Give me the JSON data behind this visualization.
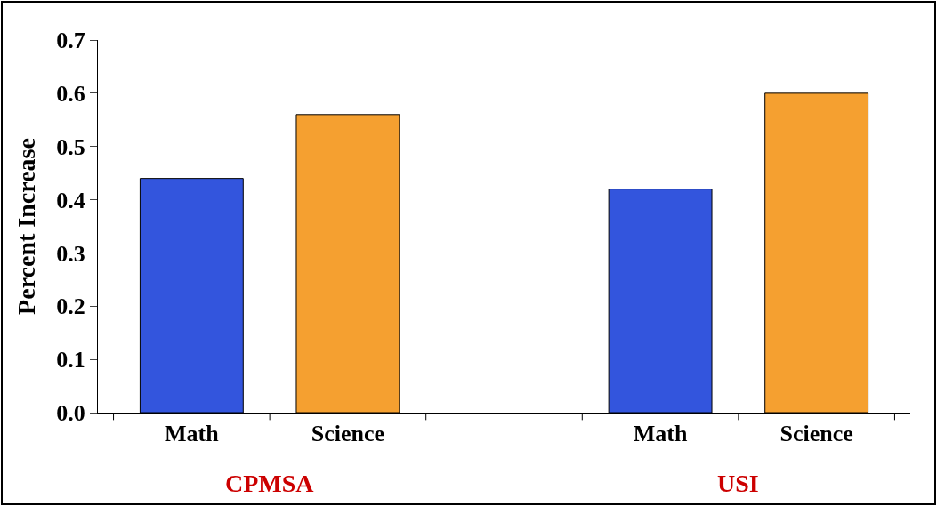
{
  "chart_data": {
    "type": "bar",
    "categories": [
      "Math",
      "Science",
      null,
      "Math",
      "Science"
    ],
    "values": [
      0.44,
      0.56,
      null,
      0.42,
      0.6
    ],
    "colors": [
      "#3355dd",
      "#f5a030",
      "#ffffff",
      "#3355dd",
      "#f5a030"
    ],
    "ylabel": "Percent Increase",
    "ylim": [
      0,
      0.7
    ],
    "yticks": [
      {
        "value": 0,
        "label": "0.0"
      },
      0.1,
      0.2,
      0.3,
      0.4,
      0.5,
      0.6,
      0.7
    ],
    "annotations": [
      "CPMSA",
      "USI"
    ]
  }
}
